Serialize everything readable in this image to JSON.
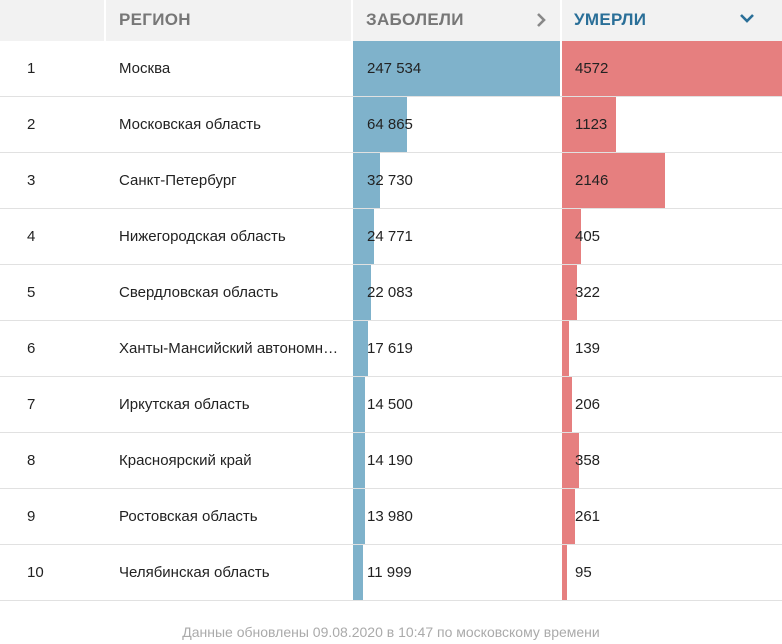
{
  "header": {
    "region_label": "РЕГИОН",
    "cases_label": "ЗАБОЛЕЛИ",
    "deaths_label": "УМЕРЛИ",
    "cases_icon": "chevron-right-icon",
    "deaths_icon": "chevron-down-icon",
    "deaths_color": "#2a6f98"
  },
  "colors": {
    "cases_bar": "#7fb2cb",
    "deaths_bar": "#e67f7f"
  },
  "scale": {
    "cases_max": 247534,
    "deaths_max": 4572
  },
  "rows": [
    {
      "idx": "1",
      "region": "Москва",
      "cases": 247534,
      "cases_text": "247 534",
      "deaths": 4572,
      "deaths_text": "4572"
    },
    {
      "idx": "2",
      "region": "Московская область",
      "cases": 64865,
      "cases_text": "64 865",
      "deaths": 1123,
      "deaths_text": "1123"
    },
    {
      "idx": "3",
      "region": "Санкт-Петербург",
      "cases": 32730,
      "cases_text": "32 730",
      "deaths": 2146,
      "deaths_text": "2146"
    },
    {
      "idx": "4",
      "region": "Нижегородская область",
      "cases": 24771,
      "cases_text": "24 771",
      "deaths": 405,
      "deaths_text": "405"
    },
    {
      "idx": "5",
      "region": "Свердловская область",
      "cases": 22083,
      "cases_text": "22 083",
      "deaths": 322,
      "deaths_text": "322"
    },
    {
      "idx": "6",
      "region": "Ханты-Мансийский автономный округ",
      "cases": 17619,
      "cases_text": "17 619",
      "deaths": 139,
      "deaths_text": "139"
    },
    {
      "idx": "7",
      "region": "Иркутская область",
      "cases": 14500,
      "cases_text": "14 500",
      "deaths": 206,
      "deaths_text": "206"
    },
    {
      "idx": "8",
      "region": "Красноярский край",
      "cases": 14190,
      "cases_text": "14 190",
      "deaths": 358,
      "deaths_text": "358"
    },
    {
      "idx": "9",
      "region": "Ростовская область",
      "cases": 13980,
      "cases_text": "13 980",
      "deaths": 261,
      "deaths_text": "261"
    },
    {
      "idx": "10",
      "region": "Челябинская область",
      "cases": 11999,
      "cases_text": "11 999",
      "deaths": 95,
      "deaths_text": "95"
    }
  ],
  "footer": {
    "text": "Данные обновлены 09.08.2020 в 10:47 по московскому времени"
  }
}
